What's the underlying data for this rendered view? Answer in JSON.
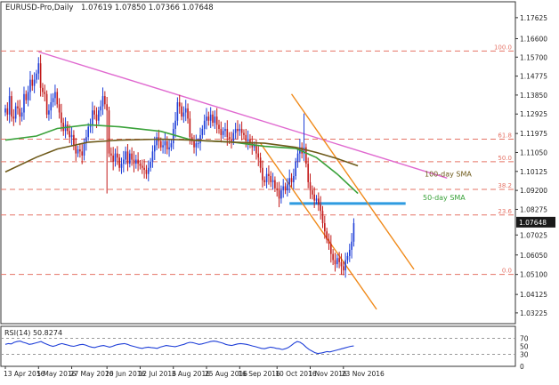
{
  "header": {
    "symbol": "EURUSD-Pro,Daily",
    "ohlc": "1.07619 1.07850 1.07366 1.07648"
  },
  "colors": {
    "bull": "#1f3fd8",
    "bear": "#c21a1a",
    "fib": "#e57366",
    "sma50": "#3aa23a",
    "sma100": "#6e5a1a",
    "trendline": "#e06ad0",
    "channel": "#f08a1a",
    "support": "#2f9be0",
    "rsi": "#1f3fd8",
    "price_box": "#1a1a1a"
  },
  "chart_data": [
    {
      "type": "candlestick",
      "title": "",
      "ylim": [
        1.027,
        1.184
      ],
      "y_ticks": [
        "1.17625",
        "1.16600",
        "1.15700",
        "1.14775",
        "1.13850",
        "1.12925",
        "1.11975",
        "1.11050",
        "1.10125",
        "1.09200",
        "1.08275",
        "1.07648",
        "1.07025",
        "1.06050",
        "1.05100",
        "1.04125",
        "1.03225"
      ],
      "y_tick_values": [
        1.17625,
        1.166,
        1.157,
        1.14775,
        1.1385,
        1.12925,
        1.11975,
        1.1105,
        1.10125,
        1.092,
        1.08275,
        1.0765,
        1.07025,
        1.0605,
        1.051,
        1.04125,
        1.03225
      ],
      "last_price": "1.07648",
      "x_ticks": [
        "13 Apr 2016",
        "5 May 2016",
        "27 May 2016",
        "20 Jun 2016",
        "12 Jul 2016",
        "3 Aug 2016",
        "25 Aug 2016",
        "16 Sep 2016",
        "10 Oct 2016",
        "1 Nov 2016",
        "23 Nov 2016"
      ],
      "x_tick_bars": [
        0,
        16,
        32,
        49,
        65,
        81,
        97,
        113,
        131,
        147,
        163
      ],
      "closes": [
        1.132,
        1.129,
        1.138,
        1.128,
        1.127,
        1.133,
        1.132,
        1.128,
        1.13,
        1.139,
        1.136,
        1.14,
        1.146,
        1.143,
        1.146,
        1.149,
        1.154,
        1.142,
        1.14,
        1.139,
        1.129,
        1.131,
        1.135,
        1.137,
        1.14,
        1.134,
        1.13,
        1.125,
        1.121,
        1.124,
        1.121,
        1.118,
        1.119,
        1.114,
        1.11,
        1.112,
        1.111,
        1.109,
        1.115,
        1.118,
        1.123,
        1.124,
        1.131,
        1.129,
        1.126,
        1.131,
        1.133,
        1.138,
        1.134,
        1.131,
        1.11,
        1.109,
        1.106,
        1.11,
        1.108,
        1.103,
        1.105,
        1.107,
        1.111,
        1.105,
        1.11,
        1.107,
        1.105,
        1.107,
        1.105,
        1.104,
        1.103,
        1.102,
        1.1,
        1.103,
        1.106,
        1.111,
        1.114,
        1.118,
        1.116,
        1.113,
        1.114,
        1.116,
        1.112,
        1.113,
        1.115,
        1.122,
        1.126,
        1.135,
        1.133,
        1.128,
        1.13,
        1.132,
        1.127,
        1.118,
        1.116,
        1.113,
        1.115,
        1.115,
        1.119,
        1.122,
        1.126,
        1.128,
        1.126,
        1.129,
        1.125,
        1.128,
        1.124,
        1.122,
        1.119,
        1.121,
        1.122,
        1.118,
        1.117,
        1.116,
        1.12,
        1.122,
        1.121,
        1.122,
        1.12,
        1.119,
        1.116,
        1.117,
        1.115,
        1.113,
        1.114,
        1.11,
        1.108,
        1.103,
        1.097,
        1.096,
        1.1,
        1.099,
        1.096,
        1.097,
        1.093,
        1.092,
        1.088,
        1.092,
        1.094,
        1.092,
        1.095,
        1.098,
        1.096,
        1.099,
        1.106,
        1.11,
        1.113,
        1.11,
        1.113,
        1.105,
        1.096,
        1.092,
        1.09,
        1.087,
        1.088,
        1.085,
        1.082,
        1.076,
        1.072,
        1.068,
        1.066,
        1.061,
        1.058,
        1.056,
        1.059,
        1.057,
        1.055,
        1.053,
        1.058,
        1.06,
        1.063,
        1.067,
        1.076
      ],
      "trendlines": [
        {
          "name": "descending resistance",
          "from": {
            "bar": 16,
            "price": 1.1596
          },
          "to": {
            "bar": 213,
            "price": 1.098
          }
        },
        {
          "name": "support zone",
          "from": {
            "bar": 137,
            "price": 1.0856
          },
          "to": {
            "bar": 193,
            "price": 1.0856
          }
        },
        {
          "name": "channel upper",
          "from": {
            "bar": 138,
            "price": 1.139
          },
          "to": {
            "bar": 197,
            "price": 1.0535
          }
        },
        {
          "name": "channel lower",
          "from": {
            "bar": 123,
            "price": 1.115
          },
          "to": {
            "bar": 179,
            "price": 1.034
          }
        }
      ]
    },
    {
      "type": "line",
      "series": [
        {
          "name": "50-day SMA",
          "label": "50-day SMA",
          "values": [
            [
              0,
              1.1165
            ],
            [
              15,
              1.1185
            ],
            [
              25,
              1.1222
            ],
            [
              40,
              1.124
            ],
            [
              55,
              1.123
            ],
            [
              75,
              1.1208
            ],
            [
              90,
              1.1165
            ],
            [
              110,
              1.1155
            ],
            [
              125,
              1.1135
            ],
            [
              140,
              1.1125
            ],
            [
              150,
              1.108
            ],
            [
              160,
              1.1
            ],
            [
              170,
              1.0905
            ]
          ]
        },
        {
          "name": "100-day SMA",
          "label": "100-day SMA",
          "values": [
            [
              0,
              1.101
            ],
            [
              15,
              1.1082
            ],
            [
              25,
              1.1122
            ],
            [
              40,
              1.1155
            ],
            [
              55,
              1.1165
            ],
            [
              75,
              1.117
            ],
            [
              90,
              1.1165
            ],
            [
              110,
              1.1155
            ],
            [
              125,
              1.115
            ],
            [
              140,
              1.113
            ],
            [
              150,
              1.1105
            ],
            [
              160,
              1.1075
            ],
            [
              170,
              1.104
            ]
          ]
        }
      ]
    },
    {
      "type": "horizontal-levels",
      "name": "Fibonacci retracement",
      "levels": [
        {
          "label": "100.0",
          "price": 1.16
        },
        {
          "label": "61.8",
          "price": 1.117
        },
        {
          "label": "50.0",
          "price": 1.106
        },
        {
          "label": "38.2",
          "price": 1.0925
        },
        {
          "label": "23.6",
          "price": 1.08
        },
        {
          "label": "0.0",
          "price": 1.051
        }
      ]
    },
    {
      "type": "line",
      "title": "RSI(14) 50.8274",
      "ylim": [
        0,
        100
      ],
      "y_ticks": [
        "70",
        "50",
        "30",
        "0"
      ],
      "y_tick_values": [
        70,
        50,
        30,
        0
      ],
      "levels": [
        70,
        30
      ],
      "values": [
        55,
        57,
        56,
        60,
        62,
        63,
        60,
        58,
        55,
        56,
        58,
        60,
        62,
        58,
        55,
        52,
        50,
        52,
        55,
        57,
        55,
        53,
        51,
        50,
        52,
        54,
        55,
        53,
        50,
        48,
        47,
        49,
        51,
        52,
        50,
        48,
        50,
        53,
        55,
        56,
        57,
        55,
        52,
        50,
        48,
        46,
        45,
        47,
        48,
        47,
        46,
        45,
        48,
        50,
        52,
        51,
        50,
        49,
        51,
        53,
        55,
        58,
        60,
        59,
        57,
        55,
        56,
        58,
        60,
        62,
        63,
        62,
        60,
        58,
        55,
        53,
        52,
        54,
        56,
        57,
        56,
        55,
        53,
        51,
        49,
        47,
        45,
        44,
        46,
        48,
        47,
        45,
        44,
        42,
        44,
        47,
        52,
        58,
        62,
        60,
        55,
        48,
        42,
        38,
        34,
        32,
        33,
        35,
        37,
        36,
        38,
        40,
        42,
        44,
        46,
        48,
        50,
        51
      ]
    }
  ]
}
